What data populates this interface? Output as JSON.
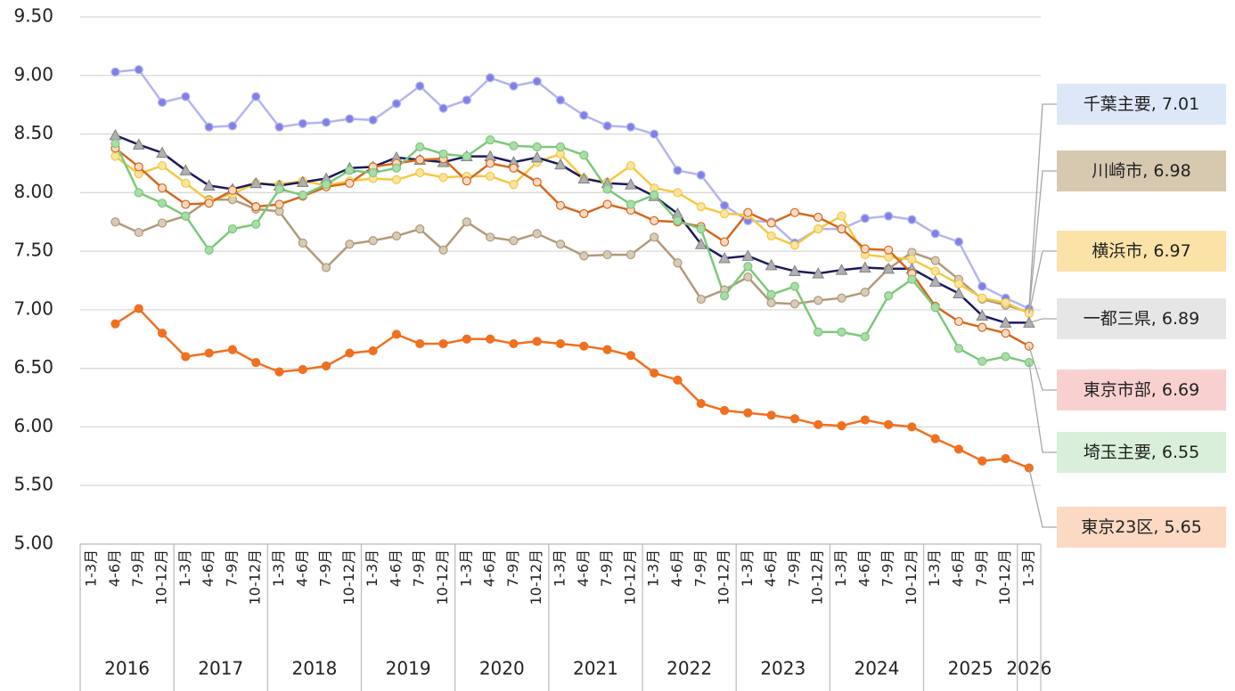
{
  "chart_data": {
    "type": "line",
    "categories": [
      "1-3月",
      "4-6月",
      "7-9月",
      "10-12月",
      "1-3月",
      "4-6月",
      "7-9月",
      "10-12月",
      "1-3月",
      "4-6月",
      "7-9月",
      "10-12月",
      "1-3月",
      "4-6月",
      "7-9月",
      "10-12月",
      "1-3月",
      "4-6月",
      "7-9月",
      "10-12月",
      "1-3月",
      "4-6月",
      "7-9月",
      "10-12月",
      "1-3月",
      "4-6月",
      "7-9月",
      "10-12月",
      "1-3月",
      "4-6月",
      "7-9月",
      "10-12月",
      "1-3月",
      "4-6月",
      "7-9月",
      "10-12月",
      "1-3月",
      "4-6月",
      "7-9月",
      "10-12月",
      "1-3月"
    ],
    "years": [
      "2016",
      "2017",
      "2018",
      "2019",
      "2020",
      "2021",
      "2022",
      "2023",
      "2024",
      "2025",
      "2026"
    ],
    "ylim": [
      5,
      9.5
    ],
    "yticks": [
      {
        "value": 5,
        "label": "5.00"
      },
      {
        "value": 5.5,
        "label": "5.50"
      },
      {
        "value": 6,
        "label": "6.00"
      },
      {
        "value": 6.5,
        "label": "6.50"
      },
      {
        "value": 7,
        "label": "7.00"
      },
      {
        "value": 7.5,
        "label": "7.50"
      },
      {
        "value": 8,
        "label": "8.00"
      },
      {
        "value": 8.5,
        "label": "8.50"
      },
      {
        "value": 9,
        "label": "9.00"
      },
      {
        "value": 9.5,
        "label": "9.50"
      }
    ],
    "grid": true,
    "series": [
      {
        "name": "千葉主要",
        "color": "#b4b4f0",
        "marker_color": "#8080e8",
        "label_color": "#dce8f7",
        "marker": "circle",
        "values": [
          null,
          9.03,
          9.05,
          8.77,
          8.82,
          8.56,
          8.57,
          8.82,
          8.56,
          8.59,
          8.6,
          8.63,
          8.62,
          8.76,
          8.91,
          8.72,
          8.79,
          8.98,
          8.91,
          8.95,
          8.79,
          8.66,
          8.57,
          8.56,
          8.5,
          8.19,
          8.15,
          7.89,
          7.76,
          7.75,
          7.57,
          7.69,
          7.69,
          7.78,
          7.8,
          7.77,
          7.65,
          7.58,
          7.2,
          7.1,
          7.01
        ]
      },
      {
        "name": "川崎市",
        "color": "#b09a7a",
        "marker_color": "#d8ccb8",
        "label_color": "#d6c9b0",
        "marker": "circle",
        "values": [
          null,
          7.75,
          7.66,
          7.74,
          7.8,
          7.94,
          7.94,
          7.86,
          7.84,
          7.57,
          7.36,
          7.56,
          7.59,
          7.63,
          7.69,
          7.51,
          7.75,
          7.62,
          7.59,
          7.65,
          7.56,
          7.46,
          7.47,
          7.47,
          7.62,
          7.4,
          7.09,
          7.17,
          7.28,
          7.06,
          7.05,
          7.08,
          7.1,
          7.15,
          7.35,
          7.49,
          7.42,
          7.26,
          7.09,
          7.04,
          6.98
        ]
      },
      {
        "name": "横浜市",
        "color": "#f5c842",
        "marker_color": "#fbe3a0",
        "label_color": "#fbe3a8",
        "marker": "circle",
        "values": [
          null,
          8.31,
          8.16,
          8.23,
          8.08,
          7.93,
          7.99,
          8.08,
          8.07,
          8.1,
          8.06,
          8.1,
          8.12,
          8.11,
          8.17,
          8.13,
          8.14,
          8.14,
          8.07,
          8.26,
          8.33,
          8.12,
          8.09,
          8.23,
          8.04,
          8.0,
          7.88,
          7.82,
          7.81,
          7.63,
          7.55,
          7.69,
          7.8,
          7.47,
          7.45,
          7.43,
          7.33,
          7.22,
          7.1,
          7.06,
          6.97
        ]
      },
      {
        "name": "一都三県",
        "color": "#1a1a5e",
        "marker_color": "#b0b0b0",
        "label_color": "#e6e6e6",
        "marker": "triangle",
        "values": [
          null,
          8.49,
          8.41,
          8.34,
          8.19,
          8.06,
          8.03,
          8.08,
          8.06,
          8.09,
          8.12,
          8.21,
          8.22,
          8.3,
          8.28,
          8.26,
          8.31,
          8.31,
          8.26,
          8.3,
          8.24,
          8.12,
          8.08,
          8.07,
          7.97,
          7.82,
          7.56,
          7.44,
          7.46,
          7.38,
          7.33,
          7.31,
          7.34,
          7.36,
          7.35,
          7.35,
          7.24,
          7.14,
          6.95,
          6.89,
          6.89
        ]
      },
      {
        "name": "東京市部",
        "color": "#d2691e",
        "marker_color": "#fcd9c0",
        "label_color": "#f9d0d0",
        "marker": "circle",
        "values": [
          null,
          8.38,
          8.22,
          8.04,
          7.9,
          7.91,
          8.02,
          7.88,
          7.9,
          7.97,
          8.05,
          8.08,
          8.22,
          8.25,
          8.28,
          8.29,
          8.1,
          8.25,
          8.21,
          8.09,
          7.89,
          7.82,
          7.9,
          7.85,
          7.76,
          7.75,
          7.71,
          7.58,
          7.83,
          7.74,
          7.83,
          7.79,
          7.69,
          7.52,
          7.51,
          7.31,
          7.03,
          6.9,
          6.85,
          6.8,
          6.69
        ]
      },
      {
        "name": "埼玉主要",
        "color": "#7cc87c",
        "marker_color": "#a8dca8",
        "label_color": "#d9efd9",
        "marker": "circle",
        "values": [
          null,
          8.42,
          8.0,
          7.91,
          7.8,
          7.51,
          7.69,
          7.73,
          8.03,
          7.98,
          8.07,
          8.19,
          8.17,
          8.21,
          8.39,
          8.33,
          8.31,
          8.45,
          8.4,
          8.39,
          8.39,
          8.32,
          8.03,
          7.9,
          7.98,
          7.76,
          7.69,
          7.12,
          7.37,
          7.13,
          7.2,
          6.81,
          6.81,
          6.77,
          7.12,
          7.26,
          7.02,
          6.67,
          6.56,
          6.6,
          6.55
        ]
      },
      {
        "name": "東京23区",
        "color": "#f07020",
        "marker_color": "#f07020",
        "label_color": "#fbd9c3",
        "marker": "circle",
        "values": [
          null,
          6.88,
          7.01,
          6.8,
          6.6,
          6.63,
          6.66,
          6.55,
          6.47,
          6.49,
          6.52,
          6.63,
          6.65,
          6.79,
          6.71,
          6.71,
          6.75,
          6.75,
          6.71,
          6.73,
          6.71,
          6.69,
          6.66,
          6.61,
          6.46,
          6.4,
          6.2,
          6.14,
          6.12,
          6.1,
          6.07,
          6.02,
          6.01,
          6.06,
          6.02,
          6.0,
          5.9,
          5.81,
          5.71,
          5.73,
          5.65
        ]
      }
    ]
  }
}
